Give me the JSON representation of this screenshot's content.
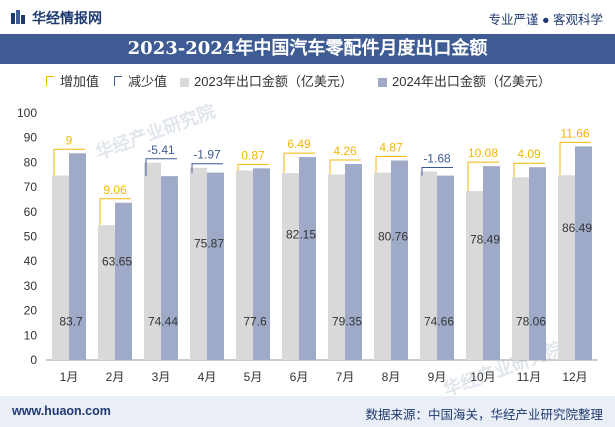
{
  "header": {
    "brand": "华经情报网",
    "tagline": "专业严谨 ● 客观科学"
  },
  "footer": {
    "website": "www.huaon.com",
    "source": "数据来源：中国海关，华经产业研究院整理"
  },
  "watermark": {
    "text": "华经产业研究院",
    "sub": "www.huaon.com"
  },
  "colors": {
    "bar_2023": "#d9d9d9",
    "bar_2024": "#9eaac8",
    "increase": "#f2b705",
    "decrease": "#3e5c93",
    "title_bg": "#3e5c93"
  },
  "legend": {
    "increase": "增加值",
    "decrease": "减少值",
    "s2023": "2023年出口金额（亿美元）",
    "s2024": "2024年出口金额（亿美元）"
  },
  "chart_data": {
    "type": "bar",
    "title": "2023-2024年中国汽车零配件月度出口金额",
    "categories": [
      "1月",
      "2月",
      "3月",
      "4月",
      "5月",
      "6月",
      "7月",
      "8月",
      "9月",
      "10月",
      "11月",
      "12月"
    ],
    "series": [
      {
        "name": "2023年出口金额（亿美元）",
        "values": [
          74.7,
          54.59,
          79.85,
          77.84,
          76.73,
          75.66,
          75.09,
          75.89,
          76.34,
          68.41,
          73.97,
          74.83
        ]
      },
      {
        "name": "2024年出口金额（亿美元）",
        "values": [
          83.7,
          63.65,
          74.44,
          75.87,
          77.6,
          82.15,
          79.35,
          80.76,
          74.66,
          78.49,
          78.06,
          86.49
        ]
      }
    ],
    "changes": [
      9,
      9.06,
      -5.41,
      -1.97,
      0.87,
      6.49,
      4.26,
      4.87,
      -1.68,
      10.08,
      4.09,
      11.66
    ],
    "change_labels": [
      "9",
      "9.06",
      "-5.41",
      "-1.97",
      "0.87",
      "6.49",
      "4.26",
      "4.87",
      "-1.68",
      "10.08",
      "4.09",
      "11.66"
    ],
    "value_labels_2024": [
      "83.7",
      "63.65",
      "74.44",
      "75.87",
      "77.6",
      "82.15",
      "79.35",
      "80.76",
      "74.66",
      "78.49",
      "78.06",
      "86.49"
    ],
    "y_ticks": [
      "0",
      "10",
      "20",
      "30",
      "40",
      "50",
      "60",
      "70",
      "80",
      "90",
      "100"
    ],
    "ylim": [
      0,
      100
    ],
    "grid": false,
    "legend_position": "top-left"
  }
}
